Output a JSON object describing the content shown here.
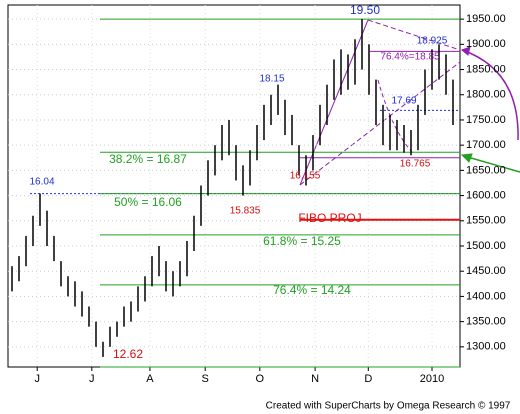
{
  "chart_data": {
    "type": "range-bar",
    "x": [
      0,
      1,
      2,
      3,
      4,
      5,
      6,
      7,
      8,
      9,
      10,
      11,
      12,
      13,
      14,
      15,
      16,
      17,
      18,
      19,
      20,
      21,
      22,
      23,
      24,
      25,
      26,
      27,
      28,
      29,
      30,
      31,
      32,
      33,
      34,
      35,
      36,
      37,
      38,
      39,
      40,
      41,
      42,
      43,
      44,
      45,
      46,
      47,
      48,
      49,
      50,
      51,
      52,
      53,
      54,
      55,
      56,
      57,
      58,
      59,
      60,
      61,
      62,
      63
    ],
    "high": [
      1460,
      1480,
      1520,
      1560,
      1604,
      1570,
      1520,
      1470,
      1440,
      1430,
      1410,
      1380,
      1350,
      1310,
      1340,
      1350,
      1380,
      1390,
      1420,
      1440,
      1480,
      1500,
      1470,
      1450,
      1470,
      1510,
      1560,
      1620,
      1670,
      1700,
      1740,
      1750,
      1700,
      1660,
      1690,
      1740,
      1780,
      1800,
      1820,
      1790,
      1760,
      1700,
      1680,
      1720,
      1780,
      1820,
      1870,
      1890,
      1880,
      1910,
      1950,
      1900,
      1830,
      1780,
      1760,
      1750,
      1740,
      1730,
      1780,
      1850,
      1890,
      1900,
      1880,
      1830
    ],
    "low": [
      1410,
      1430,
      1460,
      1500,
      1540,
      1500,
      1470,
      1420,
      1400,
      1380,
      1360,
      1340,
      1300,
      1280,
      1300,
      1320,
      1340,
      1350,
      1370,
      1390,
      1420,
      1440,
      1410,
      1400,
      1420,
      1440,
      1490,
      1540,
      1600,
      1640,
      1670,
      1680,
      1630,
      1600,
      1620,
      1670,
      1710,
      1740,
      1760,
      1720,
      1700,
      1640,
      1620,
      1650,
      1700,
      1740,
      1790,
      1800,
      1810,
      1820,
      1850,
      1800,
      1740,
      1700,
      1690,
      1690,
      1685,
      1680,
      1690,
      1760,
      1810,
      1830,
      1800,
      1740
    ],
    "color": "#000000",
    "xlim": [
      0,
      63
    ],
    "xticks": [
      {
        "value": 3.6,
        "label": "J"
      },
      {
        "value": 11.4,
        "label": "J"
      },
      {
        "value": 19.7,
        "label": "A"
      },
      {
        "value": 27.6,
        "label": "S"
      },
      {
        "value": 35.4,
        "label": "O"
      },
      {
        "value": 43.3,
        "label": "N"
      },
      {
        "value": 50.9,
        "label": "D"
      },
      {
        "value": 60,
        "label": "2010"
      }
    ],
    "ylim": [
      1260,
      1978
    ],
    "yticks": [
      {
        "value": 1300,
        "label": "1300.00"
      },
      {
        "value": 1350,
        "label": "1350.00"
      },
      {
        "value": 1400,
        "label": "1400.00"
      },
      {
        "value": 1450,
        "label": "1450.00"
      },
      {
        "value": 1500,
        "label": "1500.00"
      },
      {
        "value": 1550,
        "label": "1550.00"
      },
      {
        "value": 1600,
        "label": "1600.00"
      },
      {
        "value": 1650,
        "label": "1650.00"
      },
      {
        "value": 1700,
        "label": "1700.00"
      },
      {
        "value": 1750,
        "label": "1750.00"
      },
      {
        "value": 1800,
        "label": "1800.00"
      },
      {
        "value": 1850,
        "label": "1850.00"
      },
      {
        "value": 1900,
        "label": "1900.00"
      },
      {
        "value": 1950,
        "label": "1950.00"
      }
    ],
    "grid": true,
    "hlines": [
      {
        "value": 1950,
        "color": "#22a022",
        "style": "solid"
      },
      {
        "value": 1886,
        "color": "#9020b0",
        "style": "solid"
      },
      {
        "value": 1769,
        "color": "#2030d0",
        "style": "dotted"
      },
      {
        "value": 1686,
        "color": "#22a022",
        "style": "solid"
      },
      {
        "value": 1675,
        "color": "#9020b0",
        "style": "solid"
      },
      {
        "value": 1604,
        "color": "#2030d0",
        "style": "dotted"
      },
      {
        "value": 1604,
        "color": "#22a022",
        "style": "solid"
      },
      {
        "value": 1552,
        "color": "#e01010",
        "style": "bold"
      },
      {
        "value": 1522,
        "color": "#22a022",
        "style": "solid"
      },
      {
        "value": 1423,
        "color": "#22a022",
        "style": "solid"
      },
      {
        "value": 1260,
        "color": "#22a022",
        "style": "solid"
      }
    ],
    "annotations": [
      {
        "text": "19.50",
        "color": "#2030d0"
      },
      {
        "text": "18.15",
        "color": "#2030d0"
      },
      {
        "text": "18.925",
        "color": "#2030d0"
      },
      {
        "text": "76.4%=18.85",
        "color": "#9020b0"
      },
      {
        "text": "17.69",
        "color": "#2030d0"
      },
      {
        "text": "16.765",
        "color": "#d01010"
      },
      {
        "text": "16.155",
        "color": "#d01010"
      },
      {
        "text": "15.835",
        "color": "#d01010"
      },
      {
        "text": "16.04",
        "color": "#2030d0"
      },
      {
        "text": "38.2% = 16.87",
        "color": "#22a022"
      },
      {
        "text": "50% = 16.06",
        "color": "#22a022"
      },
      {
        "text": "61.8% = 15.25",
        "color": "#22a022"
      },
      {
        "text": "76.4% = 14.24",
        "color": "#22a022"
      },
      {
        "text": "FIBO PROJ",
        "color": "#e01010"
      },
      {
        "text": "12.62",
        "color": "#d01010"
      }
    ],
    "footer": "Created with SuperCharts by Omega Research © 1997"
  }
}
